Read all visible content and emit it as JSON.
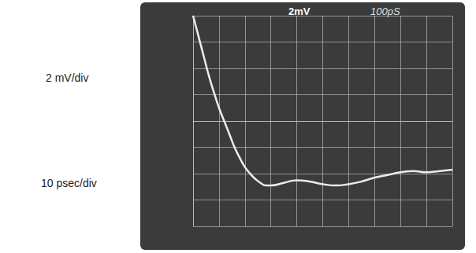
{
  "chart_data": {
    "type": "line",
    "annotations": [
      "2 mV/div",
      "10 psec/div",
      "2mV",
      "100pS"
    ],
    "x": [
      0,
      2,
      4,
      6,
      8,
      10,
      12,
      14,
      16,
      18,
      20,
      22,
      24,
      26,
      28,
      30,
      35,
      40,
      45,
      50,
      55,
      60,
      65,
      70,
      75,
      80,
      85,
      90,
      95,
      100
    ],
    "values": [
      8,
      6.5,
      5,
      3.5,
      2.2,
      1,
      0,
      -1,
      -2,
      -2.8,
      -3.5,
      -4,
      -4.4,
      -4.7,
      -4.9,
      -4.9,
      -4.7,
      -4.5,
      -4.6,
      -4.8,
      -4.9,
      -4.8,
      -4.6,
      -4.3,
      -4.1,
      -3.9,
      -3.8,
      -3.9,
      -3.8,
      -3.7
    ],
    "color": "#ececec",
    "xlim": [
      0,
      100
    ],
    "xticks": [
      0,
      10,
      20,
      30,
      40,
      50,
      60,
      70,
      80,
      90,
      100
    ],
    "ylim": [
      -8,
      8
    ],
    "yticks": [
      -8,
      -6,
      -4,
      -2,
      0,
      2,
      4,
      6,
      8
    ],
    "grid": true,
    "tick_labels": false
  }
}
